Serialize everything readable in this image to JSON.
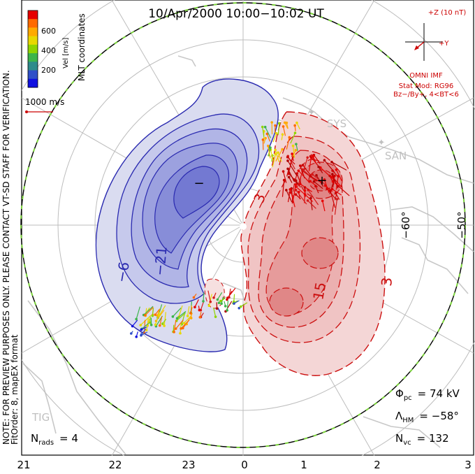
{
  "header": {
    "title": "10/Apr/2000  10:00−10:02  UT"
  },
  "side_note": {
    "line1": "NOTE: FOR PREVIEW PURPOSES ONLY. PLEASE CONTACT VT-SD STAFF FOR VERIFICATION.",
    "line2": "FitOrder: 8, mapEX format"
  },
  "colorbar": {
    "title": "Vel [m/s]",
    "coord_label": "MLT coordinates",
    "ticks": [
      "600",
      "400",
      "200"
    ],
    "colors": [
      "#e60000",
      "#ff6a00",
      "#ffaa00",
      "#e8d800",
      "#8fd400",
      "#3cb44b",
      "#2e8b8b",
      "#3050c8",
      "#1010e0"
    ]
  },
  "scale": {
    "label": "1000 m/s",
    "color": "#cc0000"
  },
  "imf": {
    "z_label": "+Z (10 nT)",
    "y_label": "+Y",
    "source": "OMNI IMF",
    "model": "Stat Mod: RG96",
    "condition": "Bz−/By+, 4<BT<6",
    "color": "#cc0000"
  },
  "stats": {
    "phi_pc": {
      "symbol": "Φ",
      "sub": "pc",
      "value": "=  74 kV"
    },
    "lambda_hm": {
      "symbol": "Λ",
      "sub": "HM",
      "value": "=  −58°"
    },
    "n_vc": {
      "symbol": "N",
      "sub": "vc",
      "value": "=  132"
    },
    "n_rads": {
      "symbol": "N",
      "sub": "rads",
      "value": "=  4"
    }
  },
  "mlt_axis": [
    "21",
    "22",
    "23",
    "0",
    "1",
    "2",
    "3"
  ],
  "lat_labels": [
    "−60°",
    "−50°"
  ],
  "stations": [
    "SYS",
    "SAN",
    "TIG"
  ],
  "contour_labels": {
    "neg_outer": "−6",
    "neg_inner": "−21",
    "pos_outer": "3",
    "pos_inner": "15",
    "pos_edge": "3",
    "min_marker": "−",
    "max_marker": "+"
  },
  "colors": {
    "negative_line": "#2a2ab0",
    "positive_line": "#cc1010",
    "boundary_dash": "#7cd43c"
  }
}
